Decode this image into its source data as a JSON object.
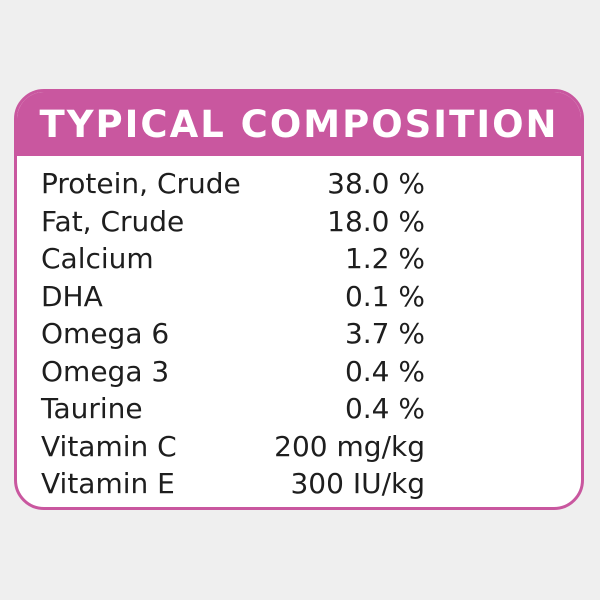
{
  "panel": {
    "title": "TYPICAL COMPOSITION",
    "accent_color": "#c9579f",
    "rows": [
      {
        "label": "Protein, Crude",
        "value": "38.0 %"
      },
      {
        "label": "Fat, Crude",
        "value": "18.0 %"
      },
      {
        "label": "Calcium",
        "value": "1.2 %"
      },
      {
        "label": "DHA",
        "value": "0.1 %"
      },
      {
        "label": "Omega 6",
        "value": "3.7 %"
      },
      {
        "label": "Omega 3",
        "value": "0.4 %"
      },
      {
        "label": "Taurine",
        "value": "0.4 %"
      },
      {
        "label": "Vitamin C",
        "value": "200 mg/kg"
      },
      {
        "label": "Vitamin E",
        "value": "300 IU/kg"
      }
    ]
  }
}
